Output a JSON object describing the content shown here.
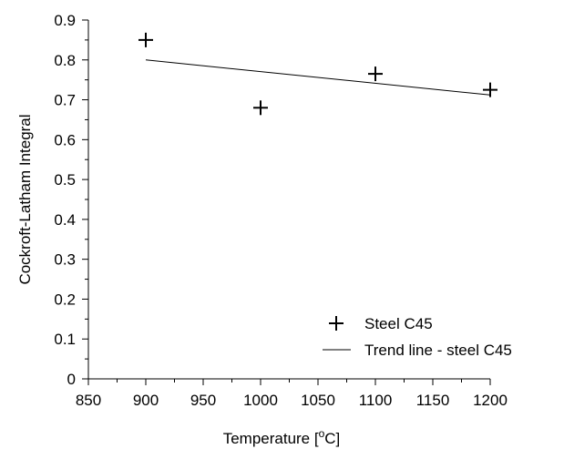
{
  "chart_data": {
    "type": "scatter",
    "xlabel": "Temperature [",
    "xlabel_unit_sup": "o",
    "xlabel_unit_tail": "C]",
    "ylabel": "Cockroft-Latham Integral",
    "xlim": [
      850,
      1200
    ],
    "ylim": [
      0,
      0.9
    ],
    "x_ticks": [
      850,
      900,
      950,
      1000,
      1050,
      1100,
      1150,
      1200
    ],
    "x_tick_labels": [
      "850",
      "900",
      "950",
      "1000",
      "1050",
      "1100",
      "1150",
      "1200"
    ],
    "y_ticks": [
      0,
      0.1,
      0.2,
      0.3,
      0.4,
      0.5,
      0.6,
      0.7,
      0.8,
      0.9
    ],
    "y_tick_labels": [
      "0",
      "0.1",
      "0.2",
      "0.3",
      "0.4",
      "0.5",
      "0.6",
      "0.7",
      "0.8",
      "0.9"
    ],
    "grid": false,
    "legend_position": "bottom-right",
    "series": [
      {
        "name": "Steel C45",
        "marker": "plus",
        "color": "#000000",
        "points": [
          {
            "x": 900,
            "y": 0.85
          },
          {
            "x": 1000,
            "y": 0.68
          },
          {
            "x": 1100,
            "y": 0.765
          },
          {
            "x": 1200,
            "y": 0.725
          }
        ]
      },
      {
        "name": "Trend line - steel C45",
        "marker": "line",
        "color": "#000000",
        "points": [
          {
            "x": 900,
            "y": 0.8
          },
          {
            "x": 1200,
            "y": 0.712
          }
        ]
      }
    ]
  }
}
